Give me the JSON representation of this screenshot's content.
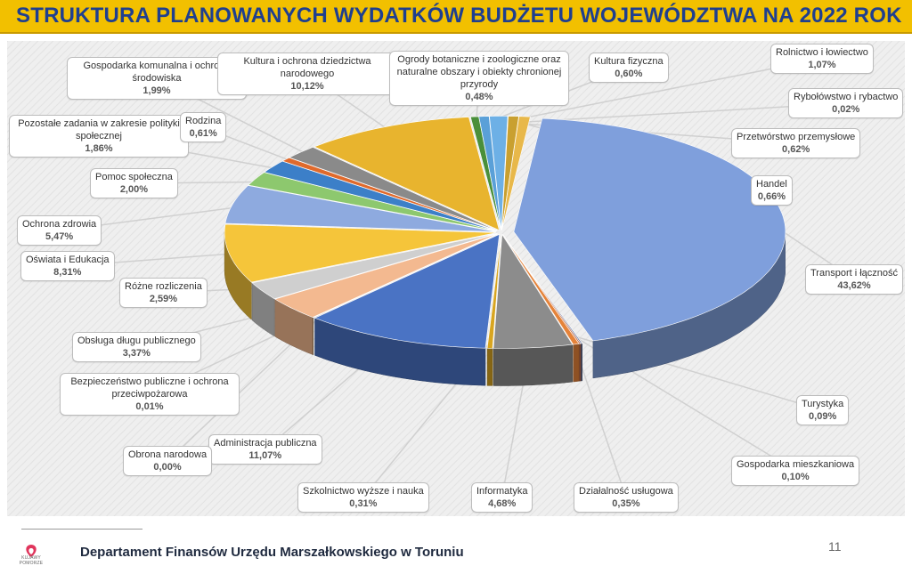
{
  "header": {
    "title": "STRUKTURA PLANOWANYCH WYDATKÓW BUDŻETU WOJEWÓDZTWA NA 2022 ROK"
  },
  "footer": {
    "department": "Departament Finansów Urzędu Marszałkowskiego w Toruniu",
    "page_number": "11",
    "logo_text": "KUJAWY POMORZE"
  },
  "chart_data": {
    "type": "pie",
    "title": "STRUKTURA PLANOWANYCH WYDATKÓW BUDŻETU WOJEWÓDZTWA NA 2022 ROK",
    "unit": "%",
    "slices": [
      {
        "name": "Transport i łączność",
        "value": 43.62,
        "label": "43,62%",
        "color": "#7f9fdc"
      },
      {
        "name": "Turystyka",
        "value": 0.09,
        "label": "0,09%",
        "color": "#5b6f9e"
      },
      {
        "name": "Gospodarka mieszkaniowa",
        "value": 0.1,
        "label": "0,10%",
        "color": "#c07050"
      },
      {
        "name": "Działalność usługowa",
        "value": 0.35,
        "label": "0,35%",
        "color": "#e5833a"
      },
      {
        "name": "Informatyka",
        "value": 4.68,
        "label": "4,68%",
        "color": "#8c8c8c"
      },
      {
        "name": "Szkolnictwo wyższe i nauka",
        "value": 0.31,
        "label": "0,31%",
        "color": "#d8a520"
      },
      {
        "name": "Administracja publiczna",
        "value": 11.07,
        "label": "11,07%",
        "color": "#4a73c4"
      },
      {
        "name": "Obrona narodowa",
        "value": 0.0,
        "label": "0,00%",
        "color": "#5a9a4a"
      },
      {
        "name": "Bezpieczeństwo publiczne i ochrona przeciwpożarowa",
        "value": 0.01,
        "label": "0,01%",
        "color": "#9a6a3a"
      },
      {
        "name": "Obsługa długu publicznego",
        "value": 3.37,
        "label": "3,37%",
        "color": "#f3b990"
      },
      {
        "name": "Różne rozliczenia",
        "value": 2.59,
        "label": "2,59%",
        "color": "#cfcfcf"
      },
      {
        "name": "Oświata i Edukacja",
        "value": 8.31,
        "label": "8,31%",
        "color": "#f5c53a"
      },
      {
        "name": "Ochrona zdrowia",
        "value": 5.47,
        "label": "5,47%",
        "color": "#8eaadf"
      },
      {
        "name": "Pomoc społeczna",
        "value": 2.0,
        "label": "2,00%",
        "color": "#8dc86e"
      },
      {
        "name": "Pozostałe zadania w zakresie polityki społecznej",
        "value": 1.86,
        "label": "1,86%",
        "color": "#3c7fc8"
      },
      {
        "name": "Rodzina",
        "value": 0.61,
        "label": "0,61%",
        "color": "#e06a2c"
      },
      {
        "name": "Gospodarka komunalna i ochrona środowiska",
        "value": 1.99,
        "label": "1,99%",
        "color": "#8a8a8a"
      },
      {
        "name": "Kultura i ochrona dziedzictwa narodowego",
        "value": 10.12,
        "label": "10,12%",
        "color": "#e8b42e"
      },
      {
        "name": "Ogrody botaniczne i zoologiczne oraz naturalne obszary i obiekty chronionej przyrody",
        "value": 0.48,
        "label": "0,48%",
        "color": "#4a8f3a"
      },
      {
        "name": "Kultura fizyczna",
        "value": 0.6,
        "label": "0,60%",
        "color": "#5aa0d8"
      },
      {
        "name": "Rolnictwo i łowiectwo",
        "value": 1.07,
        "label": "1,07%",
        "color": "#6db0e6"
      },
      {
        "name": "Rybołówstwo i rybactwo",
        "value": 0.02,
        "label": "0,02%",
        "color": "#b07a3a"
      },
      {
        "name": "Przetwórstwo przemysłowe",
        "value": 0.62,
        "label": "0,62%",
        "color": "#c9a030"
      },
      {
        "name": "Handel",
        "value": 0.66,
        "label": "0,66%",
        "color": "#e8b84a"
      }
    ]
  }
}
